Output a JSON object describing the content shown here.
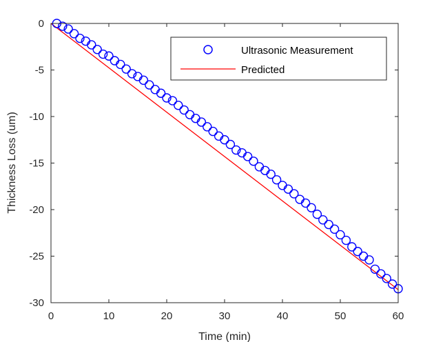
{
  "chart_data": {
    "type": "scatter",
    "title": "",
    "xlabel": "Time (min)",
    "ylabel": "Thickness Loss (um)",
    "xlim": [
      0,
      60
    ],
    "ylim": [
      -30,
      0
    ],
    "xticks": [
      0,
      10,
      20,
      30,
      40,
      50,
      60
    ],
    "yticks": [
      0,
      -5,
      -10,
      -15,
      -20,
      -25,
      -30
    ],
    "grid": false,
    "legend_position": "top-right",
    "series": [
      {
        "name": "Ultrasonic Measurement",
        "type": "scatter",
        "marker": "circle",
        "color": "#0000ff",
        "x": [
          1,
          2,
          3,
          4,
          5,
          6,
          7,
          8,
          9,
          10,
          11,
          12,
          13,
          14,
          15,
          16,
          17,
          18,
          19,
          20,
          21,
          22,
          23,
          24,
          25,
          26,
          27,
          28,
          29,
          30,
          31,
          32,
          33,
          34,
          35,
          36,
          37,
          38,
          39,
          40,
          41,
          42,
          43,
          44,
          45,
          46,
          47,
          48,
          49,
          50,
          51,
          52,
          53,
          54,
          55,
          56,
          57,
          58,
          59,
          60
        ],
        "y": [
          0,
          -0.3,
          -0.6,
          -1.1,
          -1.6,
          -1.9,
          -2.3,
          -2.8,
          -3.3,
          -3.5,
          -4.0,
          -4.4,
          -4.9,
          -5.4,
          -5.7,
          -6.1,
          -6.6,
          -7.1,
          -7.5,
          -8.0,
          -8.3,
          -8.8,
          -9.3,
          -9.8,
          -10.2,
          -10.6,
          -11.1,
          -11.6,
          -12.1,
          -12.5,
          -13.0,
          -13.6,
          -13.9,
          -14.3,
          -14.8,
          -15.4,
          -15.8,
          -16.2,
          -16.8,
          -17.4,
          -17.8,
          -18.3,
          -18.9,
          -19.3,
          -19.8,
          -20.5,
          -21.1,
          -21.6,
          -22.1,
          -22.7,
          -23.3,
          -24.0,
          -24.5,
          -25.0,
          -25.4,
          -26.4,
          -26.9,
          -27.4,
          -28.0,
          -28.5
        ]
      },
      {
        "name": "Predicted",
        "type": "line",
        "color": "#ff0000",
        "x": [
          0,
          60
        ],
        "y": [
          0,
          -28.6
        ]
      }
    ]
  }
}
